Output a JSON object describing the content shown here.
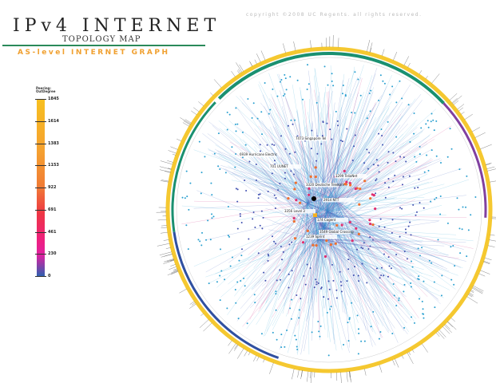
{
  "header": {
    "title": "IPv4 INTERNET",
    "subtitle": "TOPOLOGY MAP",
    "tagline": "AS-level INTERNET GRAPH",
    "copyright": "copyright ©2008 UC Regents. all rights reserved."
  },
  "legend": {
    "title_line1": "Peering:",
    "title_line2": "OutDegree",
    "ticks": [
      "1845",
      "1614",
      "1383",
      "1153",
      "922",
      "691",
      "461",
      "230",
      "0"
    ],
    "colors": {
      "high": "#f7c020",
      "mid": "#ee3545",
      "low": "#3060b0"
    }
  },
  "graph": {
    "ring_colors": {
      "outer": "#f5c830",
      "green": "#1a9070",
      "purple": "#8040a0",
      "blue": "#3050a0",
      "links": "#30a8d8",
      "core": "#d02080"
    },
    "node_labels": [
      "7473 Singapore Tel",
      "3320 Deutsche Telekom",
      "3356 Level 3",
      "174 Cogent",
      "3549 Global Crossing",
      "701 UUNET",
      "1239 Sprint",
      "2914 NTT",
      "6939 Hurricane Electric",
      "1299 TeliaNet"
    ]
  }
}
